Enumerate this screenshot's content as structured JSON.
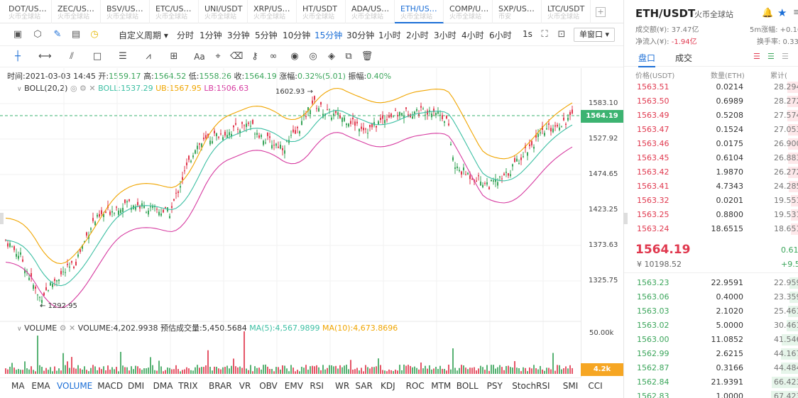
{
  "tabs": [
    {
      "symbol": "DOT/US…",
      "exchange": "火币全球站"
    },
    {
      "symbol": "ZEC/US…",
      "exchange": "火币全球站"
    },
    {
      "symbol": "BSV/US…",
      "exchange": "火币全球站"
    },
    {
      "symbol": "ETC/US…",
      "exchange": "火币全球站"
    },
    {
      "symbol": "UNI/USDT",
      "exchange": "火币全球站"
    },
    {
      "symbol": "XRP/US…",
      "exchange": "火币全球站"
    },
    {
      "symbol": "HT/USDT",
      "exchange": "火币全球站"
    },
    {
      "symbol": "ADA/US…",
      "exchange": "火币全球站"
    },
    {
      "symbol": "ETH/US…",
      "exchange": "火币全球站"
    },
    {
      "symbol": "COMP/U…",
      "exchange": "火币全球站"
    },
    {
      "symbol": "SXP/US…",
      "exchange": "币安"
    },
    {
      "symbol": "LTC/USDT",
      "exchange": "火币全球站"
    }
  ],
  "toolbar": {
    "custom_period": "自定义周期",
    "periods": [
      "分时",
      "1分钟",
      "3分钟",
      "5分钟",
      "10分钟",
      "15分钟",
      "30分钟",
      "1小时",
      "2小时",
      "3小时",
      "4小时",
      "6小时",
      "1s"
    ],
    "active_period": "15分钟",
    "window": "单窗口"
  },
  "ohlc": {
    "time": "时间:2021-03-03 14:45",
    "open_label": "开:",
    "open": "1559.17",
    "high_label": "高:",
    "high": "1564.52",
    "low_label": "低:",
    "low": "1558.26",
    "close_label": "收:",
    "close": "1564.19",
    "chg_label": "涨幅:",
    "chg": "0.32%(5.01)",
    "amp_label": "振幅:",
    "amp": "0.40%"
  },
  "boll": {
    "name": "BOLL(20,2)",
    "mid": "BOLL:1537.29",
    "ub": "UB:1567.95",
    "lb": "LB:1506.63"
  },
  "price_axis": [
    "1583.10",
    "1527.92",
    "1474.65",
    "1423.25",
    "1373.63",
    "1325.75"
  ],
  "current_price": "1564.19",
  "high_marker": "1602.93",
  "low_marker": "1292.95",
  "volume": {
    "name": "VOLUME",
    "value": "VOLUME:4,202.9938",
    "est": "预估成交量:5,450.5684",
    "ma5": "MA(5):4,567.9899",
    "ma10": "MA(10):4,673.8696",
    "axis_top": "50.00k",
    "tag": "4.2k"
  },
  "indicators": [
    "MA",
    "EMA",
    "VOLUME",
    "MACD",
    "DMI",
    "DMA",
    "TRIX",
    "BRAR",
    "VR",
    "OBV",
    "EMV",
    "RSI",
    "WR",
    "SAR",
    "KDJ",
    "ROC",
    "MTM",
    "BOLL",
    "PSY",
    "StochRSI",
    "SMI",
    "CCI"
  ],
  "active_indicator": "VOLUME",
  "right": {
    "symbol": "ETH/USDT",
    "exchange": "火币全球站",
    "turnover": "成交额(¥): 37.47亿",
    "netflow_label": "净流入(¥):",
    "netflow": "-1.94亿",
    "rise5m": "5m涨幅: +0.16",
    "turnrate": "换手率: 0.33",
    "tab_book": "盘口",
    "tab_trades": "成交",
    "col_price": "价格(USDT)",
    "col_qty": "数量(ETH)",
    "col_total": "累计(",
    "asks": [
      {
        "p": "1563.51",
        "q": "0.0214",
        "t": "28.294"
      },
      {
        "p": "1563.50",
        "q": "0.6989",
        "t": "28.272"
      },
      {
        "p": "1563.49",
        "q": "0.5208",
        "t": "27.574"
      },
      {
        "p": "1563.47",
        "q": "0.1524",
        "t": "27.053"
      },
      {
        "p": "1563.46",
        "q": "0.0175",
        "t": "26.900"
      },
      {
        "p": "1563.45",
        "q": "0.6104",
        "t": "26.883"
      },
      {
        "p": "1563.42",
        "q": "1.9870",
        "t": "26.272"
      },
      {
        "p": "1563.41",
        "q": "4.7343",
        "t": "24.285"
      },
      {
        "p": "1563.32",
        "q": "0.0201",
        "t": "19.551"
      },
      {
        "p": "1563.25",
        "q": "0.8800",
        "t": "19.531"
      },
      {
        "p": "1563.24",
        "q": "18.6515",
        "t": "18.651"
      }
    ],
    "last_price": "1564.19",
    "last_cny": "¥ 10198.52",
    "last_chg": "0.61",
    "last_chg2": "+9.5",
    "bids": [
      {
        "p": "1563.23",
        "q": "22.9591",
        "t": "22.959"
      },
      {
        "p": "1563.06",
        "q": "0.4000",
        "t": "23.359"
      },
      {
        "p": "1563.03",
        "q": "2.1020",
        "t": "25.461"
      },
      {
        "p": "1563.02",
        "q": "5.0000",
        "t": "30.461"
      },
      {
        "p": "1563.00",
        "q": "11.0852",
        "t": "41.546"
      },
      {
        "p": "1562.99",
        "q": "2.6215",
        "t": "44.167"
      },
      {
        "p": "1562.87",
        "q": "0.3166",
        "t": "44.484"
      },
      {
        "p": "1562.84",
        "q": "21.9391",
        "t": "66.423"
      },
      {
        "p": "1562.83",
        "q": "1.0000",
        "t": "67.423"
      }
    ]
  }
}
